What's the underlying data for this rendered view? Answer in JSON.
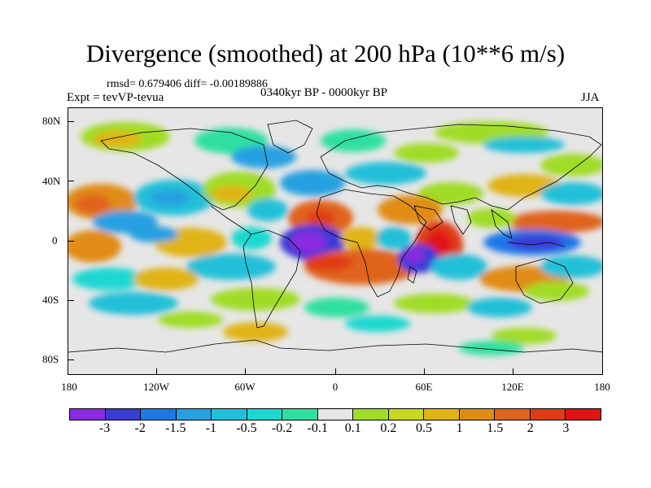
{
  "title": "Divergence (smoothed) at 200 hPa (10**6 m/s)",
  "stats": "rmsd= 0.679406 diff= -0.00189886",
  "experiment": "Expt = tevVP-tevua",
  "period": "0340kyr BP - 0000kyr BP",
  "season": "JJA",
  "y_axis_labels": [
    "80N",
    "40N",
    "0",
    "40S",
    "80S"
  ],
  "x_axis_labels": [
    "180",
    "120W",
    "60W",
    "0",
    "60E",
    "120E",
    "180"
  ],
  "colorbar": {
    "colors": [
      "#8a2be2",
      "#3b3bd6",
      "#1e78e6",
      "#28a0e0",
      "#20c0d8",
      "#1cd8d0",
      "#2ee0a0",
      "#e6e6e6",
      "#a0dc28",
      "#c8d81e",
      "#e0b414",
      "#e08c14",
      "#e0641e",
      "#e03c14",
      "#e01414"
    ],
    "labels": [
      "-3",
      "-2",
      "-1.5",
      "-1",
      "-0.5",
      "-0.2",
      "-0.1",
      "0.1",
      "0.2",
      "0.5",
      "1",
      "1.5",
      "2",
      "3"
    ]
  }
}
